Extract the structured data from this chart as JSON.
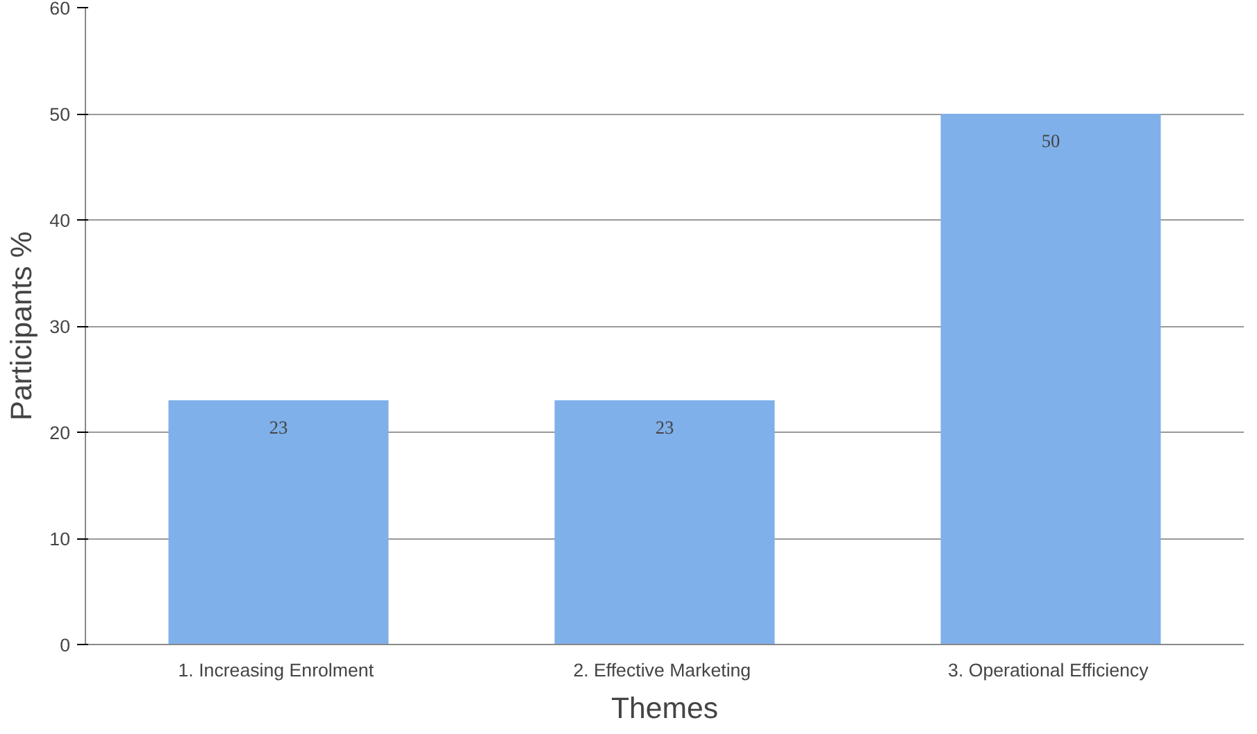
{
  "chart_data": {
    "type": "bar",
    "xlabel": "Themes",
    "ylabel": "Participants %",
    "categories": [
      "1.  Increasing Enrolment",
      "2.  Effective Marketing",
      "3.  Operational Efficiency"
    ],
    "values": [
      23,
      23,
      50
    ],
    "color": "#7fb0ea",
    "ylim": [
      0,
      60
    ],
    "yticks": [
      0,
      10,
      20,
      30,
      40,
      50,
      60
    ],
    "grid": "y",
    "data_labels": true
  }
}
